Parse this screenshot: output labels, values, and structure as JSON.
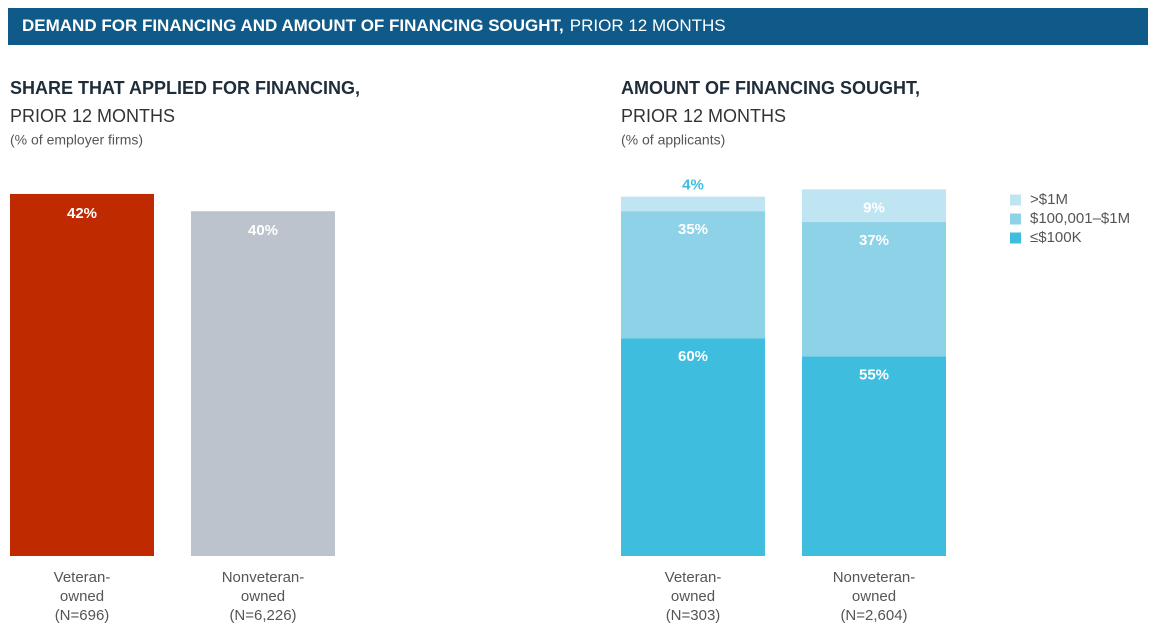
{
  "header": {
    "title_bold": "DEMAND FOR FINANCING AND AMOUNT OF FINANCING SOUGHT,",
    "title_rest": "PRIOR 12 MONTHS"
  },
  "chart_data": [
    {
      "type": "bar",
      "title": "SHARE THAT APPLIED FOR FINANCING,",
      "subtitle": "PRIOR 12 MONTHS",
      "note": "(% of employer firms)",
      "categories": [
        [
          "Veteran-",
          "owned",
          "(N=696)"
        ],
        [
          "Nonveteran-",
          "owned",
          "(N=6,226)"
        ]
      ],
      "values": [
        42,
        40
      ],
      "value_labels": [
        "42%",
        "40%"
      ],
      "colors": [
        "#c02a00",
        "#bdc3cc"
      ]
    },
    {
      "type": "stacked_bar",
      "title": "AMOUNT OF FINANCING SOUGHT,",
      "subtitle": "PRIOR 12 MONTHS",
      "note": "(% of applicants)",
      "categories": [
        [
          "Veteran-",
          "owned",
          "(N=303)"
        ],
        [
          "Nonveteran-",
          "owned",
          "(N=2,604)"
        ]
      ],
      "series": [
        {
          "name": "≤$100K",
          "color": "#3ebddf",
          "values": [
            60,
            55
          ],
          "value_labels": [
            "60%",
            "55%"
          ]
        },
        {
          "name": "$100,001–$1M",
          "color": "#8ed2e8",
          "values": [
            35,
            37
          ],
          "value_labels": [
            "35%",
            "37%"
          ]
        },
        {
          "name": ">$1M",
          "color": "#bfe4f2",
          "values": [
            4,
            9
          ],
          "value_labels": [
            "4%",
            "9%"
          ]
        }
      ]
    }
  ]
}
